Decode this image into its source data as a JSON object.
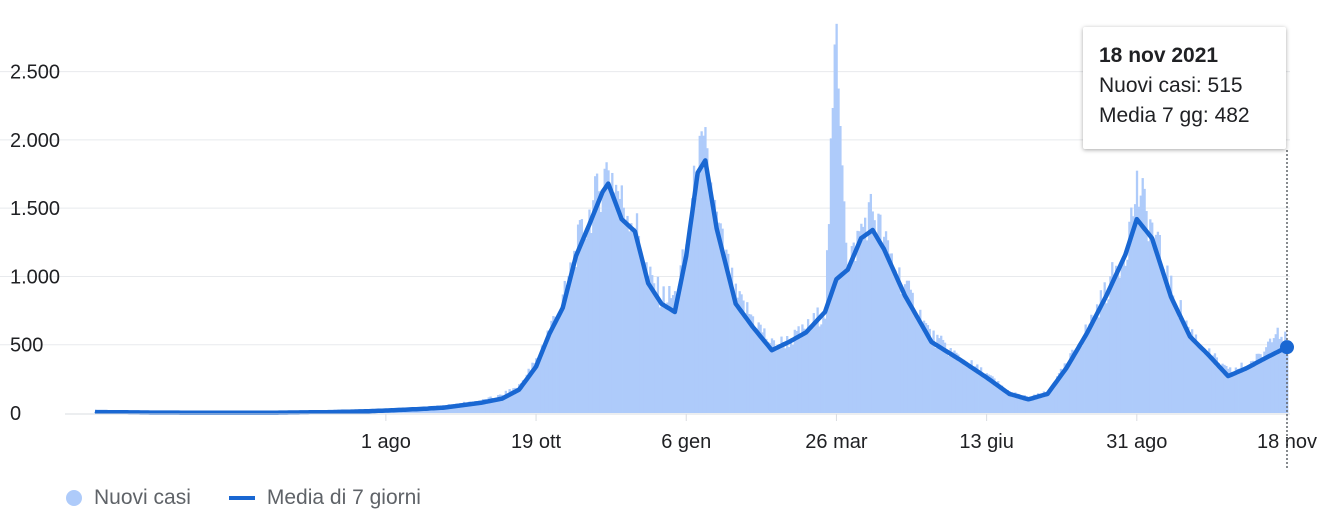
{
  "chart_data": {
    "type": "bar",
    "x_start": "2020-03-01",
    "x_end": "2021-11-18",
    "ylim": [
      0,
      2900
    ],
    "yticks": [
      {
        "value": 0,
        "label": "0"
      },
      {
        "value": 500,
        "label": "500"
      },
      {
        "value": 1000,
        "label": "1.000"
      },
      {
        "value": 1500,
        "label": "1.500"
      },
      {
        "value": 2000,
        "label": "2.000"
      },
      {
        "value": 2500,
        "label": "2.500"
      }
    ],
    "xticks": [
      {
        "date": "2020-08-01",
        "label": "1 ago"
      },
      {
        "date": "2020-10-19",
        "label": "19 ott"
      },
      {
        "date": "2021-01-06",
        "label": "6 gen"
      },
      {
        "date": "2021-03-26",
        "label": "26 mar"
      },
      {
        "date": "2021-06-13",
        "label": "13 giu"
      },
      {
        "date": "2021-08-31",
        "label": "31 ago"
      },
      {
        "date": "2021-11-18",
        "label": "18 nov"
      }
    ],
    "series": [
      {
        "name": "Nuovi casi",
        "kind": "bar",
        "color": "#aecbfa",
        "approx_points": [
          [
            "2020-03-01",
            10
          ],
          [
            "2020-04-01",
            3
          ],
          [
            "2020-05-01",
            2
          ],
          [
            "2020-06-01",
            2
          ],
          [
            "2020-07-01",
            8
          ],
          [
            "2020-07-20",
            15
          ],
          [
            "2020-08-01",
            25
          ],
          [
            "2020-08-20",
            40
          ],
          [
            "2020-09-01",
            55
          ],
          [
            "2020-09-20",
            90
          ],
          [
            "2020-10-01",
            130
          ],
          [
            "2020-10-10",
            200
          ],
          [
            "2020-10-19",
            380
          ],
          [
            "2020-10-26",
            620
          ],
          [
            "2020-11-02",
            820
          ],
          [
            "2020-11-09",
            1200
          ],
          [
            "2020-11-16",
            1450
          ],
          [
            "2020-11-23",
            1700
          ],
          [
            "2020-11-26",
            1820
          ],
          [
            "2020-12-03",
            1550
          ],
          [
            "2020-12-10",
            1400
          ],
          [
            "2020-12-17",
            1000
          ],
          [
            "2020-12-24",
            850
          ],
          [
            "2020-12-31",
            850
          ],
          [
            "2021-01-06",
            1200
          ],
          [
            "2021-01-12",
            1850
          ],
          [
            "2021-01-16",
            1900
          ],
          [
            "2021-01-22",
            1400
          ],
          [
            "2021-02-01",
            850
          ],
          [
            "2021-02-10",
            700
          ],
          [
            "2021-02-20",
            500
          ],
          [
            "2021-03-01",
            530
          ],
          [
            "2021-03-10",
            610
          ],
          [
            "2021-03-20",
            760
          ],
          [
            "2021-03-26",
            2850
          ],
          [
            "2021-04-01",
            1050
          ],
          [
            "2021-04-08",
            1350
          ],
          [
            "2021-04-14",
            1500
          ],
          [
            "2021-04-20",
            1250
          ],
          [
            "2021-05-01",
            920
          ],
          [
            "2021-05-15",
            560
          ],
          [
            "2021-05-30",
            400
          ],
          [
            "2021-06-13",
            280
          ],
          [
            "2021-06-25",
            150
          ],
          [
            "2021-07-05",
            110
          ],
          [
            "2021-07-15",
            150
          ],
          [
            "2021-07-25",
            350
          ],
          [
            "2021-08-05",
            620
          ],
          [
            "2021-08-15",
            900
          ],
          [
            "2021-08-25",
            1200
          ],
          [
            "2021-08-31",
            1650
          ],
          [
            "2021-09-08",
            1350
          ],
          [
            "2021-09-18",
            900
          ],
          [
            "2021-09-28",
            600
          ],
          [
            "2021-10-08",
            430
          ],
          [
            "2021-10-18",
            300
          ],
          [
            "2021-10-28",
            350
          ],
          [
            "2021-11-05",
            420
          ],
          [
            "2021-11-12",
            650
          ],
          [
            "2021-11-18",
            515
          ]
        ]
      },
      {
        "name": "Media di 7 giorni",
        "kind": "line",
        "color": "#1967d2",
        "approx_points": [
          [
            "2020-03-01",
            7
          ],
          [
            "2020-04-01",
            3
          ],
          [
            "2020-05-01",
            2
          ],
          [
            "2020-06-01",
            2
          ],
          [
            "2020-07-01",
            6
          ],
          [
            "2020-07-20",
            12
          ],
          [
            "2020-08-01",
            18
          ],
          [
            "2020-08-20",
            30
          ],
          [
            "2020-09-01",
            40
          ],
          [
            "2020-09-20",
            75
          ],
          [
            "2020-10-01",
            105
          ],
          [
            "2020-10-10",
            170
          ],
          [
            "2020-10-19",
            340
          ],
          [
            "2020-10-26",
            580
          ],
          [
            "2020-11-02",
            770
          ],
          [
            "2020-11-09",
            1150
          ],
          [
            "2020-11-16",
            1380
          ],
          [
            "2020-11-23",
            1620
          ],
          [
            "2020-11-26",
            1680
          ],
          [
            "2020-12-03",
            1420
          ],
          [
            "2020-12-10",
            1330
          ],
          [
            "2020-12-17",
            950
          ],
          [
            "2020-12-24",
            800
          ],
          [
            "2020-12-31",
            740
          ],
          [
            "2021-01-06",
            1150
          ],
          [
            "2021-01-12",
            1760
          ],
          [
            "2021-01-16",
            1850
          ],
          [
            "2021-01-22",
            1350
          ],
          [
            "2021-02-01",
            800
          ],
          [
            "2021-02-10",
            630
          ],
          [
            "2021-02-20",
            460
          ],
          [
            "2021-03-01",
            520
          ],
          [
            "2021-03-10",
            590
          ],
          [
            "2021-03-20",
            740
          ],
          [
            "2021-03-26",
            980
          ],
          [
            "2021-04-01",
            1050
          ],
          [
            "2021-04-08",
            1280
          ],
          [
            "2021-04-14",
            1340
          ],
          [
            "2021-04-20",
            1200
          ],
          [
            "2021-05-01",
            860
          ],
          [
            "2021-05-15",
            520
          ],
          [
            "2021-05-30",
            390
          ],
          [
            "2021-06-13",
            260
          ],
          [
            "2021-06-25",
            140
          ],
          [
            "2021-07-05",
            100
          ],
          [
            "2021-07-15",
            140
          ],
          [
            "2021-07-25",
            330
          ],
          [
            "2021-08-05",
            590
          ],
          [
            "2021-08-15",
            860
          ],
          [
            "2021-08-25",
            1160
          ],
          [
            "2021-08-31",
            1420
          ],
          [
            "2021-09-08",
            1280
          ],
          [
            "2021-09-18",
            850
          ],
          [
            "2021-09-28",
            560
          ],
          [
            "2021-10-08",
            420
          ],
          [
            "2021-10-18",
            270
          ],
          [
            "2021-10-28",
            330
          ],
          [
            "2021-11-05",
            390
          ],
          [
            "2021-11-12",
            440
          ],
          [
            "2021-11-18",
            482
          ]
        ]
      }
    ],
    "grid": true,
    "highlighted_point": {
      "date": "2021-11-18",
      "value": 482
    }
  },
  "tooltip": {
    "date": "18 nov 2021",
    "line1": "Nuovi casi: 515",
    "line2": "Media 7 gg: 482"
  },
  "legend": {
    "bars_label": "Nuovi casi",
    "line_label": "Media di 7 giorni"
  },
  "colors": {
    "bars": "#aecbfa",
    "line": "#1967d2",
    "grid": "#e8eaed",
    "axis": "#dadce0"
  }
}
